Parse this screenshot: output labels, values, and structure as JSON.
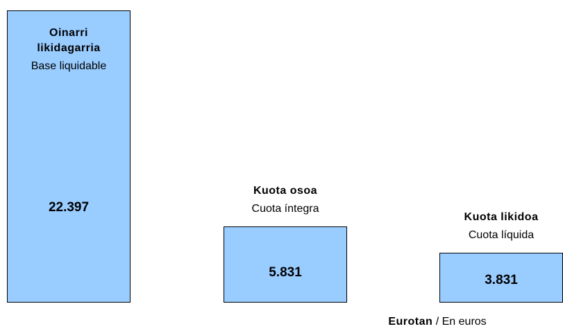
{
  "chart_data": {
    "type": "bar",
    "categories": [
      "Oinarri likidagarria",
      "Kuota osoa",
      "Kuota likidoa"
    ],
    "category_subtitles": [
      "Base liquidable",
      "Cuota íntegra",
      "Cuota líquida"
    ],
    "values": [
      22397,
      5831,
      3831
    ],
    "value_labels": [
      "22.397",
      "5.831",
      "3.831"
    ],
    "color": "#99ccff",
    "footer": {
      "unit_eu": "Eurotan",
      "unit_es": "/ En euros"
    }
  }
}
